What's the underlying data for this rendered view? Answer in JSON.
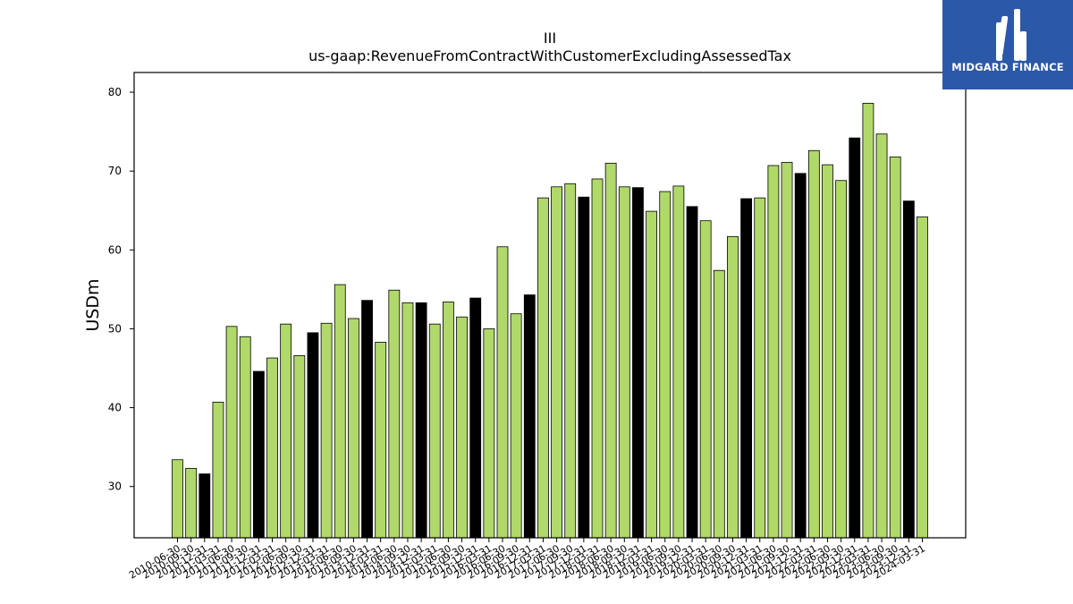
{
  "brand": {
    "name": "MIDGARD FINANCE",
    "bg_color": "#2c58a8",
    "icon": "midgard-logo-icon"
  },
  "chart_data": {
    "type": "bar",
    "title": "III",
    "subtitle": "us-gaap:RevenueFromContractWithCustomerExcludingAssessedTax",
    "ylabel": "USDm",
    "xlabel": "",
    "ylim": [
      23.5,
      82.5
    ],
    "yticks": [
      30,
      40,
      50,
      60,
      70,
      80
    ],
    "colors": {
      "quarter": "#b0d96a",
      "fiscal_year_end": "#000000",
      "edge": "#000000"
    },
    "categories": [
      "2010-06-30",
      "2010-09-30",
      "2010-12-31",
      "2011-03-31",
      "2011-06-30",
      "2011-09-30",
      "2011-12-31",
      "2012-03-31",
      "2012-06-30",
      "2012-09-30",
      "2012-12-31",
      "2013-03-31",
      "2013-06-30",
      "2013-09-30",
      "2013-12-31",
      "2014-03-31",
      "2014-06-30",
      "2014-09-30",
      "2014-12-31",
      "2015-03-31",
      "2015-06-30",
      "2015-09-30",
      "2015-12-31",
      "2016-03-31",
      "2016-06-30",
      "2016-09-30",
      "2016-12-31",
      "2017-03-31",
      "2017-06-30",
      "2017-09-30",
      "2017-12-31",
      "2018-03-31",
      "2018-06-30",
      "2018-09-30",
      "2018-12-31",
      "2019-03-31",
      "2019-06-30",
      "2019-09-30",
      "2019-12-31",
      "2020-03-31",
      "2020-06-30",
      "2020-09-30",
      "2020-12-31",
      "2021-03-31",
      "2021-06-30",
      "2021-09-30",
      "2021-12-31",
      "2022-03-31",
      "2022-06-30",
      "2022-09-30",
      "2022-12-31",
      "2023-03-31",
      "2023-06-30",
      "2023-09-30",
      "2023-12-31",
      "2024-03-31"
    ],
    "values": [
      33.4,
      32.3,
      31.6,
      40.7,
      50.3,
      49.0,
      44.6,
      46.3,
      50.6,
      46.6,
      49.5,
      50.7,
      55.6,
      51.3,
      53.6,
      48.3,
      54.9,
      53.3,
      53.3,
      50.6,
      53.4,
      51.5,
      53.9,
      50.0,
      60.4,
      51.9,
      54.3,
      66.6,
      68.0,
      68.4,
      66.7,
      69.0,
      71.0,
      68.0,
      67.9,
      64.9,
      67.4,
      68.1,
      65.5,
      63.7,
      57.4,
      61.7,
      66.5,
      66.6,
      70.7,
      71.1,
      69.7,
      72.6,
      70.8,
      68.8,
      74.2,
      78.6,
      74.7,
      71.8,
      66.2,
      64.2
    ],
    "fiscal_year_end_flags": [
      false,
      false,
      true,
      false,
      false,
      false,
      true,
      false,
      false,
      false,
      true,
      false,
      false,
      false,
      true,
      false,
      false,
      false,
      true,
      false,
      false,
      false,
      true,
      false,
      false,
      false,
      true,
      false,
      false,
      false,
      true,
      false,
      false,
      false,
      true,
      false,
      false,
      false,
      true,
      false,
      false,
      false,
      true,
      false,
      false,
      false,
      true,
      false,
      false,
      false,
      true,
      false,
      false,
      false,
      true,
      false
    ]
  }
}
